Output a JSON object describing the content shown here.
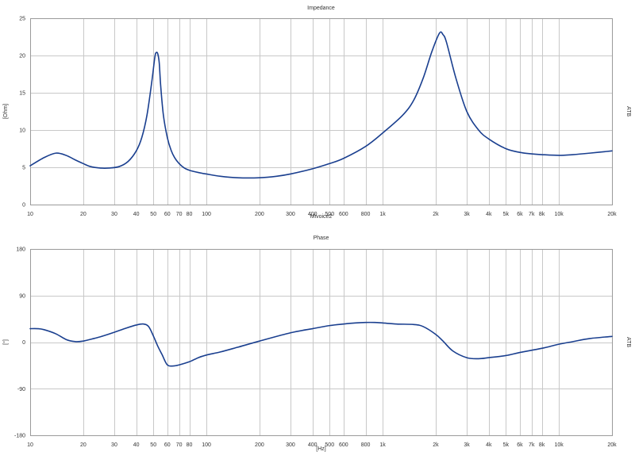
{
  "chart_data": [
    {
      "type": "line",
      "title": "Impedance",
      "xlabel": "Mivoice2",
      "ylabel": "[Ohm]",
      "right_label": "ATB",
      "x_scale": "log",
      "xlim": [
        10,
        20000
      ],
      "ylim": [
        0,
        25
      ],
      "y_ticks": [
        "0",
        "5",
        "10",
        "15",
        "20",
        "25"
      ],
      "y_tick_values": [
        0,
        5,
        10,
        15,
        20,
        25
      ],
      "x_tick_values": [
        10,
        20,
        30,
        40,
        50,
        60,
        70,
        80,
        100,
        200,
        300,
        400,
        500,
        600,
        800,
        1000,
        2000,
        3000,
        4000,
        5000,
        6000,
        7000,
        8000,
        10000,
        20000
      ],
      "x_ticks": [
        "10",
        "20",
        "30",
        "40",
        "50",
        "60",
        "70",
        "80",
        "100",
        "200",
        "300",
        "400",
        "500",
        "600",
        "800",
        "1k",
        "2k",
        "3k",
        "4k",
        "5k",
        "6k",
        "7k",
        "8k",
        "10k",
        "20k"
      ],
      "grid": true,
      "series": [
        {
          "color": "#1a3f8f",
          "x": [
            10,
            12,
            14,
            16,
            18,
            20,
            22,
            25,
            28,
            32,
            36,
            40,
            43,
            46,
            49,
            51,
            52,
            53,
            54,
            55,
            57,
            60,
            63,
            66,
            70,
            75,
            80,
            90,
            100,
            120,
            150,
            200,
            250,
            300,
            400,
            500,
            600,
            800,
            1000,
            1300,
            1500,
            1700,
            1900,
            2100,
            2200,
            2300,
            2600,
            3000,
            3500,
            4000,
            5000,
            6000,
            7000,
            8000,
            10000,
            12000,
            15000,
            20000
          ],
          "values": [
            5.2,
            6.3,
            6.9,
            6.6,
            6.0,
            5.5,
            5.1,
            4.9,
            4.9,
            5.1,
            5.8,
            7.2,
            9.0,
            12.0,
            16.5,
            19.8,
            20.4,
            20.2,
            19.0,
            16.0,
            12.0,
            9.0,
            7.3,
            6.3,
            5.5,
            4.9,
            4.6,
            4.3,
            4.1,
            3.8,
            3.6,
            3.6,
            3.8,
            4.1,
            4.8,
            5.5,
            6.2,
            7.8,
            9.6,
            12.0,
            14.0,
            17.0,
            20.5,
            23.0,
            22.8,
            21.8,
            17.0,
            12.5,
            10.0,
            8.8,
            7.5,
            7.0,
            6.8,
            6.7,
            6.6,
            6.7,
            6.9,
            7.2
          ]
        }
      ]
    },
    {
      "type": "line",
      "title": "Phase",
      "xlabel": "[Hz]",
      "ylabel": "[°]",
      "right_label": "ATB",
      "x_scale": "log",
      "xlim": [
        10,
        20000
      ],
      "ylim": [
        -180,
        180
      ],
      "y_ticks": [
        "-180",
        "-90",
        "0",
        "90",
        "180"
      ],
      "y_tick_values": [
        -180,
        -90,
        0,
        90,
        180
      ],
      "x_tick_values": [
        10,
        20,
        30,
        40,
        50,
        60,
        70,
        80,
        100,
        200,
        300,
        400,
        500,
        600,
        800,
        1000,
        2000,
        3000,
        4000,
        5000,
        6000,
        7000,
        8000,
        10000,
        20000
      ],
      "x_ticks": [
        "10",
        "20",
        "30",
        "40",
        "50",
        "60",
        "70",
        "80",
        "100",
        "200",
        "300",
        "400",
        "500",
        "600",
        "800",
        "1k",
        "2k",
        "3k",
        "4k",
        "5k",
        "6k",
        "7k",
        "8k",
        "10k",
        "20k"
      ],
      "grid": true,
      "series": [
        {
          "color": "#1a3f8f",
          "x": [
            10,
            11,
            12,
            14,
            16,
            18,
            20,
            23,
            26,
            30,
            35,
            40,
            44,
            47,
            50,
            53,
            56,
            60,
            65,
            70,
            80,
            90,
            100,
            120,
            150,
            200,
            300,
            400,
            500,
            600,
            700,
            800,
            900,
            1000,
            1200,
            1500,
            1700,
            2000,
            2200,
            2500,
            3000,
            3500,
            4000,
            5000,
            6000,
            8000,
            10000,
            12000,
            15000,
            20000
          ],
          "values": [
            26,
            26,
            24,
            16,
            5,
            1,
            2,
            7,
            12,
            19,
            27,
            33,
            35,
            30,
            12,
            -8,
            -24,
            -44,
            -46,
            -44,
            -38,
            -30,
            -25,
            -19,
            -10,
            2,
            18,
            26,
            32,
            35,
            37,
            38,
            38,
            37,
            35,
            34,
            30,
            15,
            2,
            -17,
            -30,
            -32,
            -30,
            -26,
            -20,
            -12,
            -4,
            1,
            7,
            11
          ]
        }
      ]
    }
  ]
}
